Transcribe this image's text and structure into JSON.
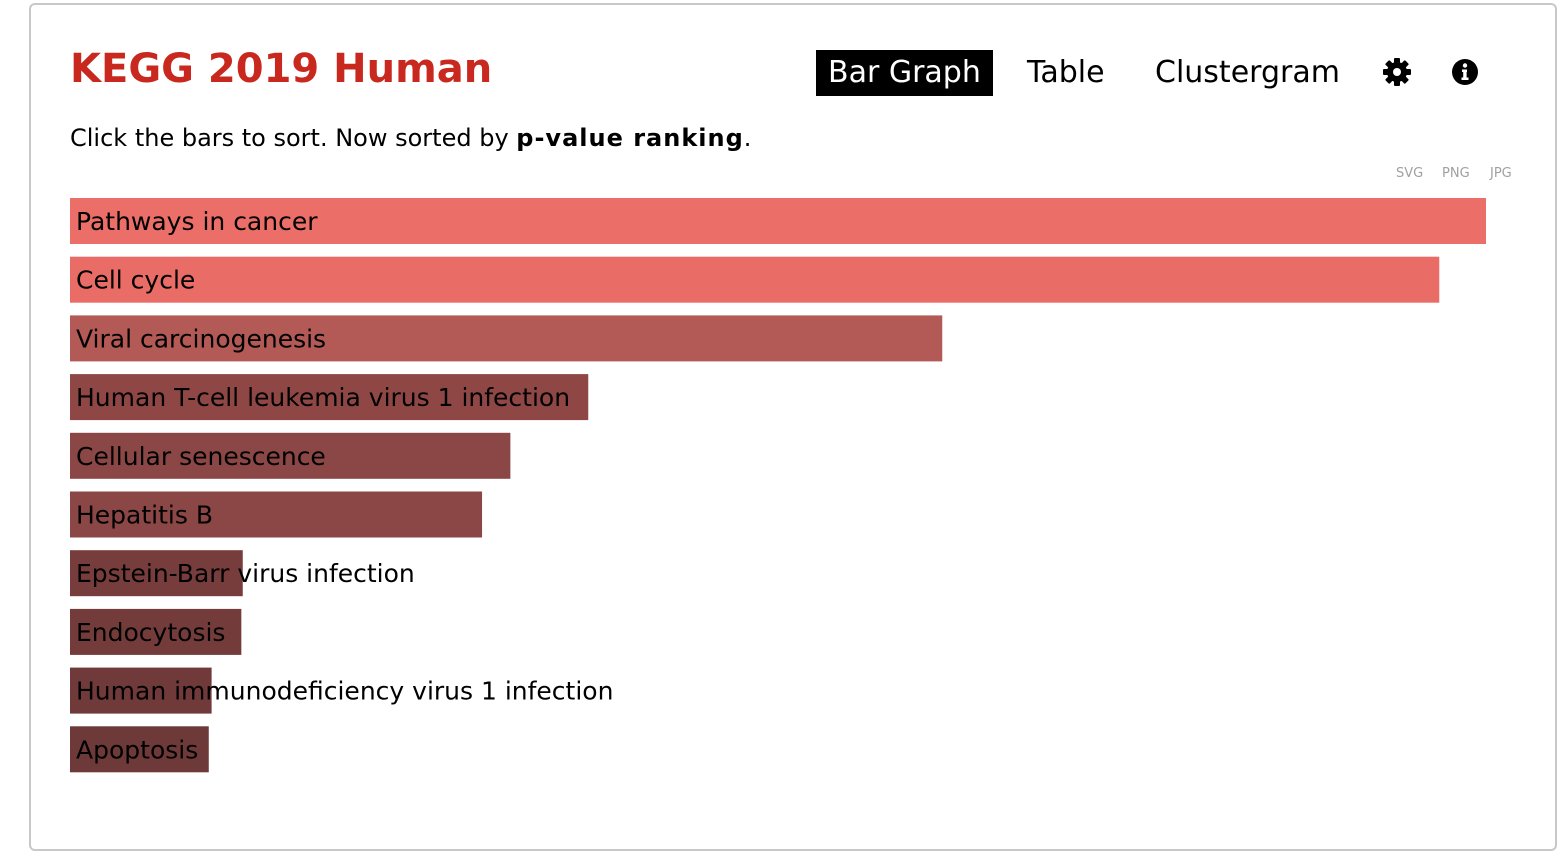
{
  "header": {
    "title": "KEGG 2019 Human",
    "tabs": [
      {
        "label": "Bar Graph",
        "active": true
      },
      {
        "label": "Table",
        "active": false
      },
      {
        "label": "Clustergram",
        "active": false
      }
    ],
    "icons": {
      "settings": "gear-icon",
      "info": "info-icon"
    }
  },
  "subtitle": {
    "prefix": "Click the bars to sort. Now sorted by ",
    "sort_key": "p-value ranking",
    "suffix": "."
  },
  "downloads": {
    "svg": "SVG",
    "png": "PNG",
    "jpg": "JPG"
  },
  "colors": {
    "title": "#c8281e",
    "accent": "#000000"
  },
  "chart_data": {
    "type": "bar",
    "orientation": "horizontal",
    "categories": [
      "Pathways in cancer",
      "Cell cycle",
      "Viral carcinogenesis",
      "Human T-cell leukemia virus 1 infection",
      "Cellular senescence",
      "Hepatitis B",
      "Epstein-Barr virus infection",
      "Endocytosis",
      "Human immunodeficiency virus 1 infection",
      "Apoptosis"
    ],
    "values": [
      1.0,
      0.967,
      0.616,
      0.366,
      0.311,
      0.291,
      0.122,
      0.121,
      0.1,
      0.098
    ],
    "colors": [
      "#ec6e68",
      "#ea6c66",
      "#b35a56",
      "#8e4745",
      "#8b4745",
      "#8a4745",
      "#773d3c",
      "#733c3b",
      "#6f3a39",
      "#6d3a39"
    ],
    "title": "",
    "xlabel": "",
    "ylabel": "",
    "xlim": [
      0,
      1
    ],
    "grid": false,
    "legend": "none"
  }
}
